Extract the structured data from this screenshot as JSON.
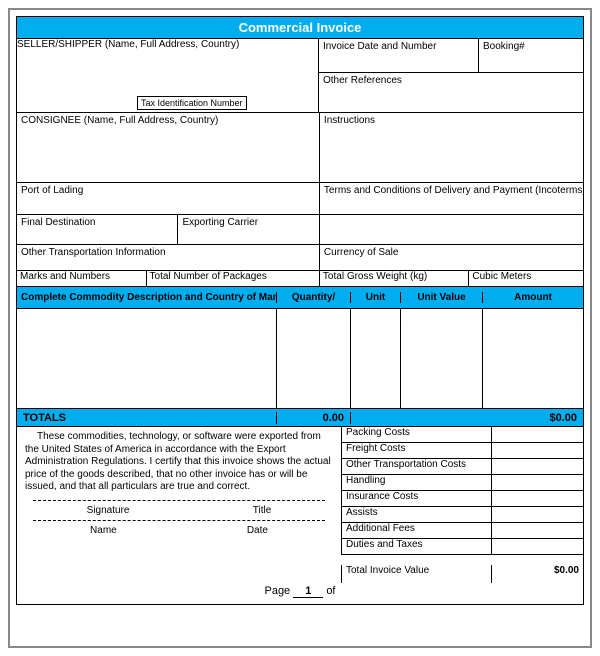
{
  "title": "Commercial Invoice",
  "colors": {
    "brand": "#00aef0",
    "text": "#000000",
    "border": "#000000"
  },
  "header": {
    "seller_label": "SELLER/SHIPPER  (Name, Full Address, Country)",
    "tax_id_label": "Tax Identification Number",
    "invoice_date_label": "Invoice Date and Number",
    "booking_label": "Booking#",
    "other_ref_label": "Other References",
    "consignee_label": "CONSIGNEE  (Name, Full Address, Country)",
    "instructions_label": "Instructions",
    "port_label": "Port of Lading",
    "terms_label": "Terms and Conditions of Delivery and Payment  (Incoterms)",
    "final_dest_label": "Final Destination",
    "exporting_label": "Exporting Carrier",
    "other_transport_label": "Other Transportation Information",
    "currency_label": "Currency of Sale",
    "marks_label": "Marks and Numbers",
    "packages_label": "Total Number of Packages",
    "gross_weight_label": "Total Gross Weight  (kg)",
    "cubic_label": "Cubic Meters"
  },
  "columns": {
    "c1": "Complete Commodity Description and Country of Manufacture",
    "c2": "Quantity/",
    "c3": "Unit",
    "c4": "Unit Value",
    "c5": "Amount"
  },
  "totals": {
    "label": "TOTALS",
    "qty": "0.00",
    "amount": "$0.00"
  },
  "certification": "These commodities, technology, or software were exported from the United States of America in accordance with the Export Administration Regulations. I certify that this invoice shows the actual price of the goods described, that no other invoice has or will be issued, and that all particulars are true and correct.",
  "sig": {
    "signature": "Signature",
    "title": "Title",
    "name": "Name",
    "date": "Date"
  },
  "costs": [
    {
      "label": "Packing Costs",
      "value": ""
    },
    {
      "label": "Freight Costs",
      "value": ""
    },
    {
      "label": "Other Transportation Costs",
      "value": ""
    },
    {
      "label": "Handling",
      "value": ""
    },
    {
      "label": "Insurance Costs",
      "value": ""
    },
    {
      "label": "Assists",
      "value": ""
    },
    {
      "label": "Additional Fees",
      "value": ""
    },
    {
      "label": "Duties and Taxes",
      "value": ""
    }
  ],
  "total_invoice": {
    "label": "Total Invoice Value",
    "value": "$0.00"
  },
  "page": {
    "prefix": "Page",
    "num": "1",
    "of": "of"
  }
}
